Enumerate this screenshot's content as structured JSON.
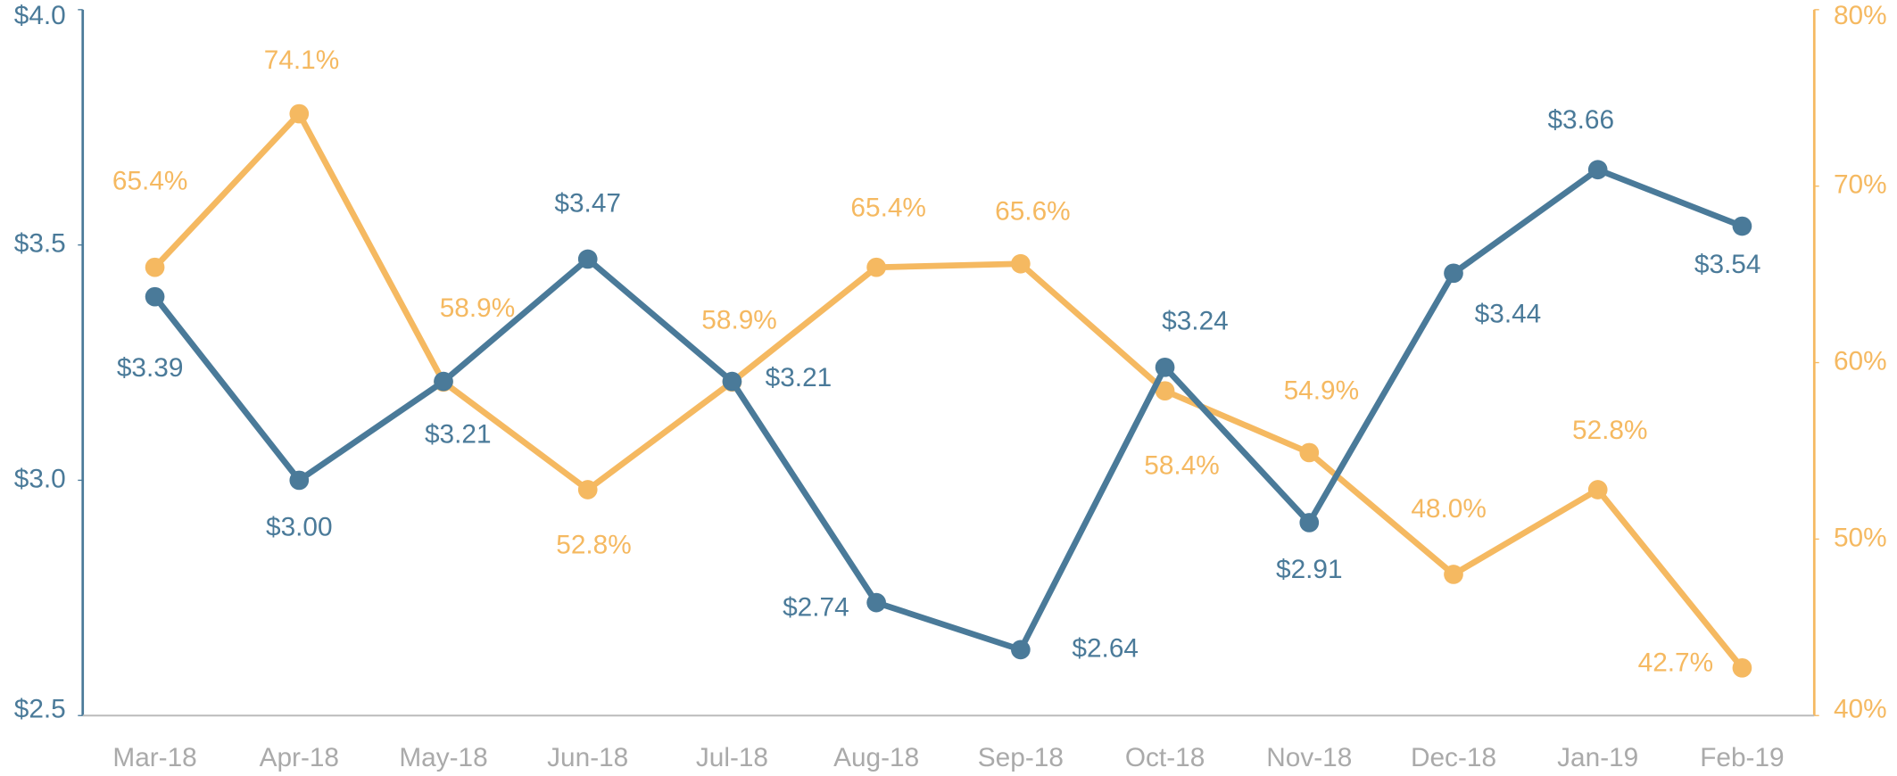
{
  "chart_data": {
    "type": "line",
    "categories": [
      "Mar-18",
      "Apr-18",
      "May-18",
      "Jun-18",
      "Jul-18",
      "Aug-18",
      "Sep-18",
      "Oct-18",
      "Nov-18",
      "Dec-18",
      "Jan-19",
      "Feb-19"
    ],
    "series": [
      {
        "color": "#4a7a99",
        "values": [
          3.39,
          3.0,
          3.21,
          3.47,
          3.21,
          2.74,
          2.64,
          3.24,
          2.91,
          3.44,
          3.66,
          3.54
        ],
        "value_labels": [
          "$3.39",
          "$3.00",
          "$3.21",
          "$3.47",
          "$3.21",
          "$2.74",
          "$2.64",
          "$3.24",
          "$2.91",
          "$3.44",
          "$3.66",
          "$3.54"
        ]
      },
      {
        "color": "#f5b961",
        "axis": "y2",
        "values": [
          65.4,
          74.1,
          58.9,
          52.8,
          58.9,
          65.4,
          65.6,
          58.4,
          54.9,
          48.0,
          52.8,
          42.7
        ],
        "value_labels": [
          "65.4%",
          "74.1%",
          "58.9%",
          "52.8%",
          "58.9%",
          "65.4%",
          "65.6%",
          "58.4%",
          "54.9%",
          "48.0%",
          "52.8%",
          "42.7%"
        ]
      }
    ],
    "ylim": [
      2.5,
      4.0
    ],
    "yticks": [
      {
        "value": 2.5,
        "label": "$2.5"
      },
      {
        "value": 3.0,
        "label": "$3.0"
      },
      {
        "value": 3.5,
        "label": "$3.5"
      },
      {
        "value": 4.0,
        "label": "$4.0"
      }
    ],
    "y2lim": [
      40,
      80
    ],
    "y2ticks": [
      {
        "value": 40,
        "label": "40%"
      },
      {
        "value": 50,
        "label": "50%"
      },
      {
        "value": 60,
        "label": "60%"
      },
      {
        "value": 70,
        "label": "70%"
      },
      {
        "value": 80,
        "label": "80%"
      }
    ]
  }
}
